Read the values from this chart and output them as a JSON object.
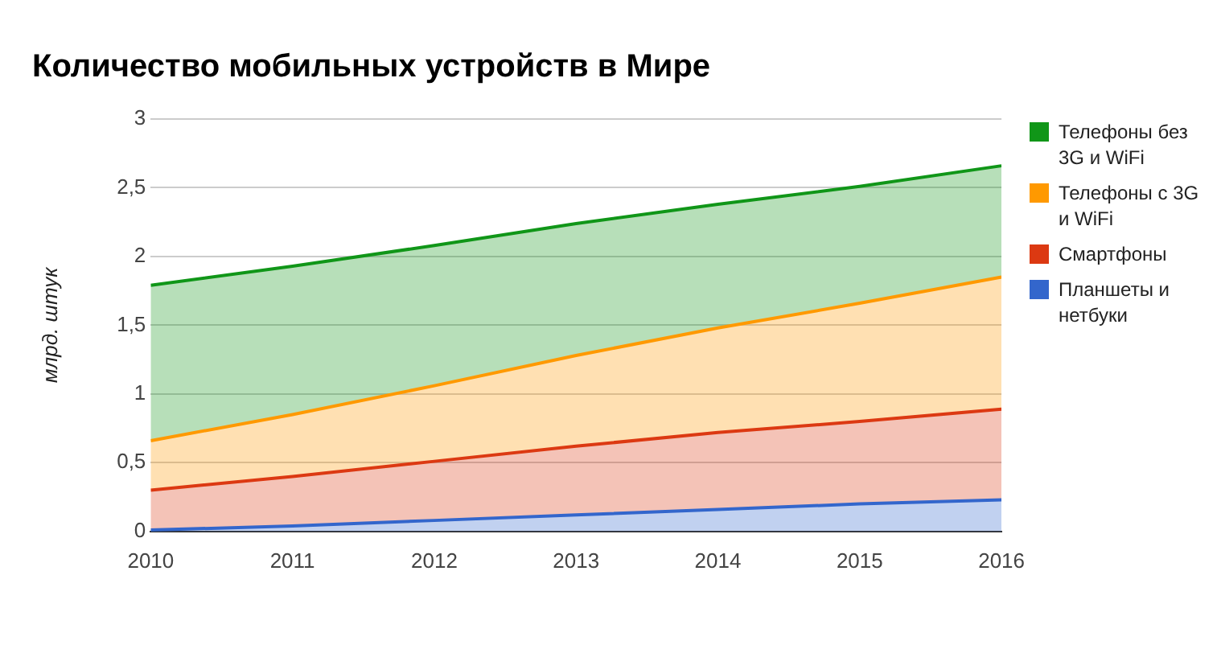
{
  "chart_data": {
    "type": "area",
    "title": "Количество мобильных устройств в Мире",
    "ylabel": "млрд. штук",
    "x": [
      2010,
      2011,
      2012,
      2013,
      2014,
      2015,
      2016
    ],
    "stacked": true,
    "series": [
      {
        "name": "Планшеты и нетбуки",
        "color": "#3366cc",
        "values": [
          0.01,
          0.04,
          0.08,
          0.12,
          0.16,
          0.2,
          0.23
        ]
      },
      {
        "name": "Смартфоны",
        "color": "#dc3912",
        "values": [
          0.29,
          0.36,
          0.43,
          0.5,
          0.56,
          0.6,
          0.66
        ]
      },
      {
        "name": "Телефоны с 3G и WiFi",
        "color": "#ff9900",
        "values": [
          0.36,
          0.45,
          0.55,
          0.66,
          0.76,
          0.86,
          0.96
        ]
      },
      {
        "name": "Телефоны без 3G и WiFi",
        "color": "#109618",
        "values": [
          1.13,
          1.08,
          1.02,
          0.96,
          0.9,
          0.85,
          0.81
        ]
      }
    ],
    "xlim": [
      2010,
      2016
    ],
    "xticks": [
      2010,
      2011,
      2012,
      2013,
      2014,
      2015,
      2016
    ],
    "ylim": [
      0,
      3
    ],
    "yticks": [
      0,
      {
        "value": 0.5,
        "label": "0,5"
      },
      1,
      {
        "value": 1.5,
        "label": "1,5"
      },
      2,
      {
        "value": 2.5,
        "label": "2,5"
      },
      3
    ],
    "grid": "y",
    "legend": "right"
  }
}
